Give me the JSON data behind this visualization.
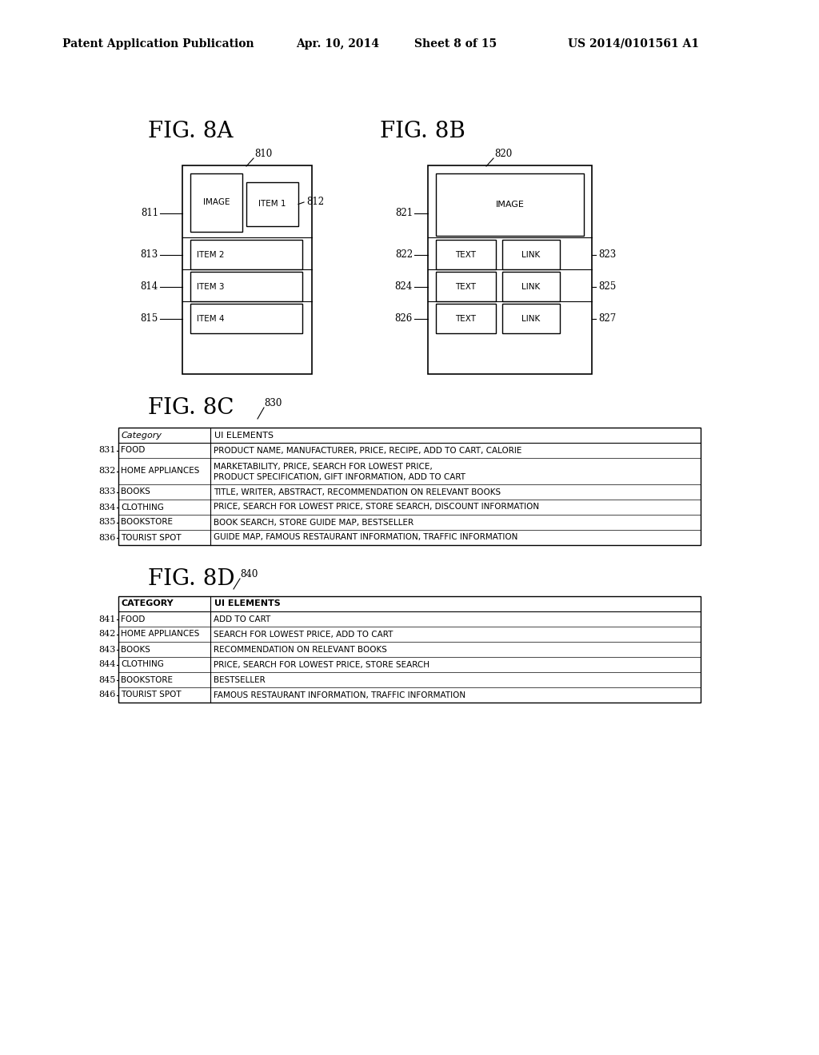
{
  "bg_color": "#ffffff",
  "header_text": "Patent Application Publication",
  "header_date": "Apr. 10, 2014",
  "header_sheet": "Sheet 8 of 15",
  "header_patent": "US 2014/0101561 A1",
  "fig8a_label": "FIG. 8A",
  "fig8b_label": "FIG. 8B",
  "fig8c_label": "FIG. 8C",
  "fig8d_label": "FIG. 8D",
  "fig8c_table": {
    "header": [
      "Category",
      "UI ELEMENTS"
    ],
    "rows": [
      [
        "FOOD",
        "PRODUCT NAME, MANUFACTURER, PRICE, RECIPE, ADD TO CART, CALORIE"
      ],
      [
        "HOME APPLIANCES",
        "MARKETABILITY, PRICE, SEARCH FOR LOWEST PRICE,\nPRODUCT SPECIFICATION, GIFT INFORMATION, ADD TO CART"
      ],
      [
        "BOOKS",
        "TITLE, WRITER, ABSTRACT, RECOMMENDATION ON RELEVANT BOOKS"
      ],
      [
        "CLOTHING",
        "PRICE, SEARCH FOR LOWEST PRICE, STORE SEARCH, DISCOUNT INFORMATION"
      ],
      [
        "BOOKSTORE",
        "BOOK SEARCH, STORE GUIDE MAP, BESTSELLER"
      ],
      [
        "TOURIST SPOT",
        "GUIDE MAP, FAMOUS RESTAURANT INFORMATION, TRAFFIC INFORMATION"
      ]
    ],
    "labels": [
      "831",
      "832",
      "833",
      "834",
      "835",
      "836"
    ]
  },
  "fig8d_table": {
    "header": [
      "CATEGORY",
      "UI ELEMENTS"
    ],
    "rows": [
      [
        "FOOD",
        "ADD TO CART"
      ],
      [
        "HOME APPLIANCES",
        "SEARCH FOR LOWEST PRICE, ADD TO CART"
      ],
      [
        "BOOKS",
        "RECOMMENDATION ON RELEVANT BOOKS"
      ],
      [
        "CLOTHING",
        "PRICE, SEARCH FOR LOWEST PRICE, STORE SEARCH"
      ],
      [
        "BOOKSTORE",
        "BESTSELLER"
      ],
      [
        "TOURIST SPOT",
        "FAMOUS RESTAURANT INFORMATION, TRAFFIC INFORMATION"
      ]
    ],
    "labels": [
      "841",
      "842",
      "843",
      "844",
      "845",
      "846"
    ]
  }
}
